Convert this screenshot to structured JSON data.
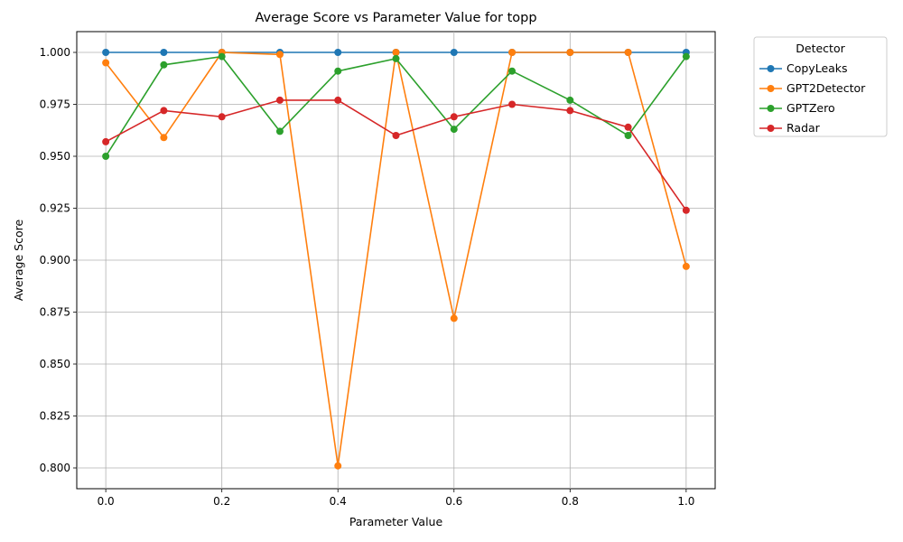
{
  "chart_data": {
    "type": "line",
    "title": "Average Score vs Parameter Value for topp",
    "xlabel": "Parameter Value",
    "ylabel": "Average Score",
    "xlim": [
      -0.05,
      1.05
    ],
    "ylim": [
      0.79,
      1.01
    ],
    "xticks": [
      "0.0",
      "0.2",
      "0.4",
      "0.6",
      "0.8",
      "1.0"
    ],
    "xtick_values": [
      0.0,
      0.2,
      0.4,
      0.6,
      0.8,
      1.0
    ],
    "yticks": [
      "0.800",
      "0.825",
      "0.850",
      "0.875",
      "0.900",
      "0.925",
      "0.950",
      "0.975",
      "1.000"
    ],
    "ytick_values": [
      0.8,
      0.825,
      0.85,
      0.875,
      0.9,
      0.925,
      0.95,
      0.975,
      1.0
    ],
    "grid": true,
    "legend_title": "Detector",
    "legend_placement": "outside-top-right",
    "x": [
      0.0,
      0.1,
      0.2,
      0.3,
      0.4,
      0.5,
      0.6,
      0.7,
      0.8,
      0.9,
      1.0
    ],
    "series": [
      {
        "name": "CopyLeaks",
        "color": "#1f77b4",
        "values": [
          1.0,
          1.0,
          1.0,
          1.0,
          1.0,
          1.0,
          1.0,
          1.0,
          1.0,
          1.0,
          1.0
        ]
      },
      {
        "name": "GPT2Detector",
        "color": "#ff7f0e",
        "values": [
          0.995,
          0.959,
          1.0,
          0.999,
          0.801,
          1.0,
          0.872,
          1.0,
          1.0,
          1.0,
          0.897
        ]
      },
      {
        "name": "GPTZero",
        "color": "#2ca02c",
        "values": [
          0.95,
          0.994,
          0.998,
          0.962,
          0.991,
          0.997,
          0.963,
          0.991,
          0.977,
          0.96,
          0.998
        ]
      },
      {
        "name": "Radar",
        "color": "#d62728",
        "values": [
          0.957,
          0.972,
          0.969,
          0.977,
          0.977,
          0.96,
          0.969,
          0.975,
          0.972,
          0.964,
          0.924
        ]
      }
    ]
  }
}
